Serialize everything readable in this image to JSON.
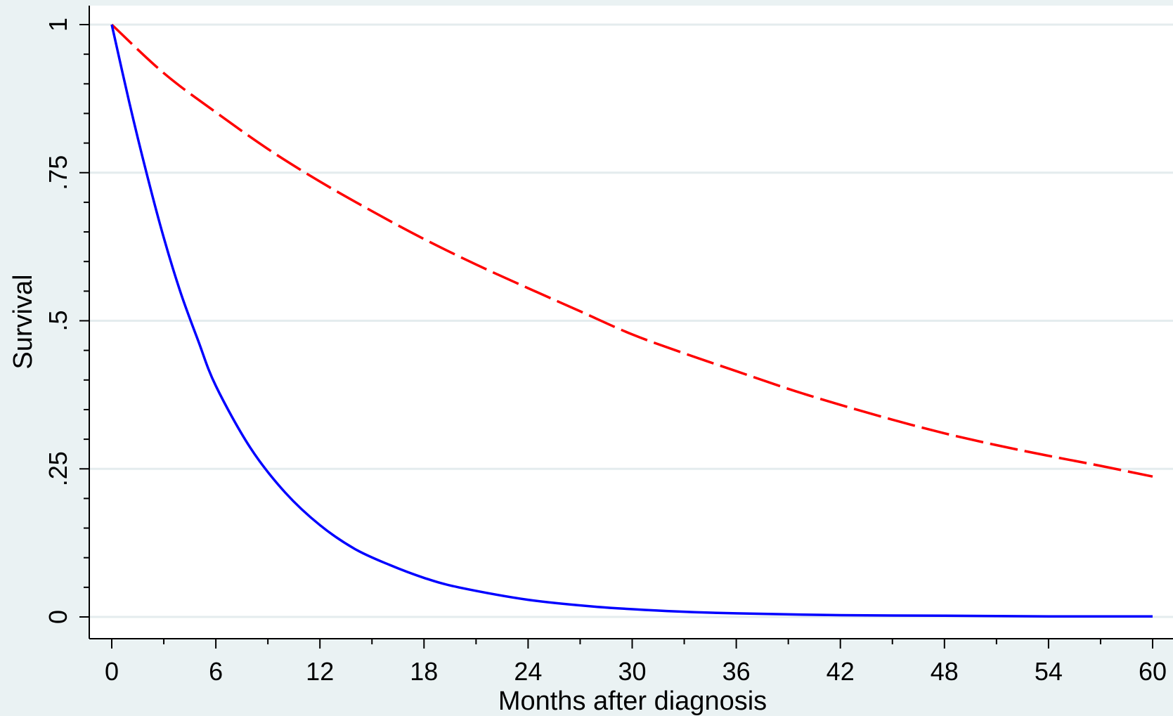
{
  "chart_data": {
    "type": "line",
    "title": "",
    "xlabel": "Months after diagnosis",
    "ylabel": "Survival",
    "xlim": [
      0,
      60
    ],
    "ylim": [
      0,
      1
    ],
    "xticks": [
      0,
      6,
      12,
      18,
      24,
      30,
      36,
      42,
      48,
      54,
      60
    ],
    "xtick_labels": [
      "0",
      "6",
      "12",
      "18",
      "24",
      "30",
      "36",
      "42",
      "48",
      "54",
      "60"
    ],
    "yticks": [
      0,
      0.25,
      0.5,
      0.75,
      1
    ],
    "ytick_labels": [
      "0",
      ".25",
      ".5",
      ".75",
      "1"
    ],
    "grid": "horizontal",
    "legend": "none",
    "series": [
      {
        "color": "#ff0000",
        "style": "dashed",
        "x": [
          0,
          3,
          6,
          9,
          12,
          15,
          18,
          21,
          24,
          27,
          30,
          33,
          36,
          39,
          42,
          45,
          48,
          51,
          54,
          57,
          60
        ],
        "y": [
          1.0,
          0.918,
          0.852,
          0.79,
          0.735,
          0.685,
          0.638,
          0.595,
          0.555,
          0.516,
          0.477,
          0.445,
          0.415,
          0.385,
          0.358,
          0.333,
          0.31,
          0.29,
          0.272,
          0.255,
          0.237
        ]
      },
      {
        "color": "#0000ff",
        "style": "solid",
        "x": [
          0,
          1,
          2,
          3,
          4,
          5,
          6,
          8,
          10,
          12,
          14,
          16,
          18,
          20,
          24,
          28,
          32,
          36,
          42,
          48,
          54,
          60
        ],
        "y": [
          1.0,
          0.87,
          0.75,
          0.64,
          0.545,
          0.465,
          0.39,
          0.285,
          0.21,
          0.155,
          0.115,
          0.088,
          0.066,
          0.05,
          0.029,
          0.017,
          0.01,
          0.006,
          0.003,
          0.002,
          0.001,
          0.001
        ]
      }
    ]
  }
}
